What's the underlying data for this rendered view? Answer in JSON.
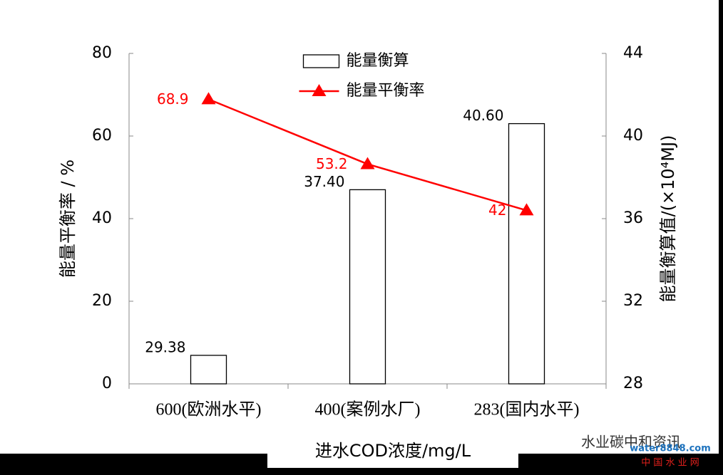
{
  "chart_data": {
    "type": "bar-line",
    "categories": [
      "600(欧洲水平)",
      "400(案例水厂)",
      "283(国内水平)"
    ],
    "series": [
      {
        "name": "能量衡算",
        "type": "bar",
        "axis": "y2",
        "color": "#ffffff",
        "values": [
          29.38,
          37.4,
          40.6
        ],
        "value_labels": [
          "29.38",
          "37.40",
          "40.60"
        ]
      },
      {
        "name": "能量平衡率",
        "type": "line",
        "color": "#ff0000",
        "values": [
          68.9,
          53.2,
          42
        ]
      }
    ],
    "ylim": [
      0,
      80
    ],
    "yticks": [
      0,
      20,
      40,
      60,
      80
    ],
    "y2lim": [
      28,
      44
    ],
    "y2ticks": [
      28,
      32,
      36,
      40,
      44
    ],
    "xlabel": "进水COD浓度/mg/L",
    "ylabel": "能量平衡率 / %",
    "y2label": "能量衡算值/(×10⁴MJ)",
    "legend": "upper center",
    "grid": false
  },
  "watermark": {
    "account": "水业碳中和资讯",
    "logo": "water8848.com",
    "site": "中 国 水 业 网"
  }
}
